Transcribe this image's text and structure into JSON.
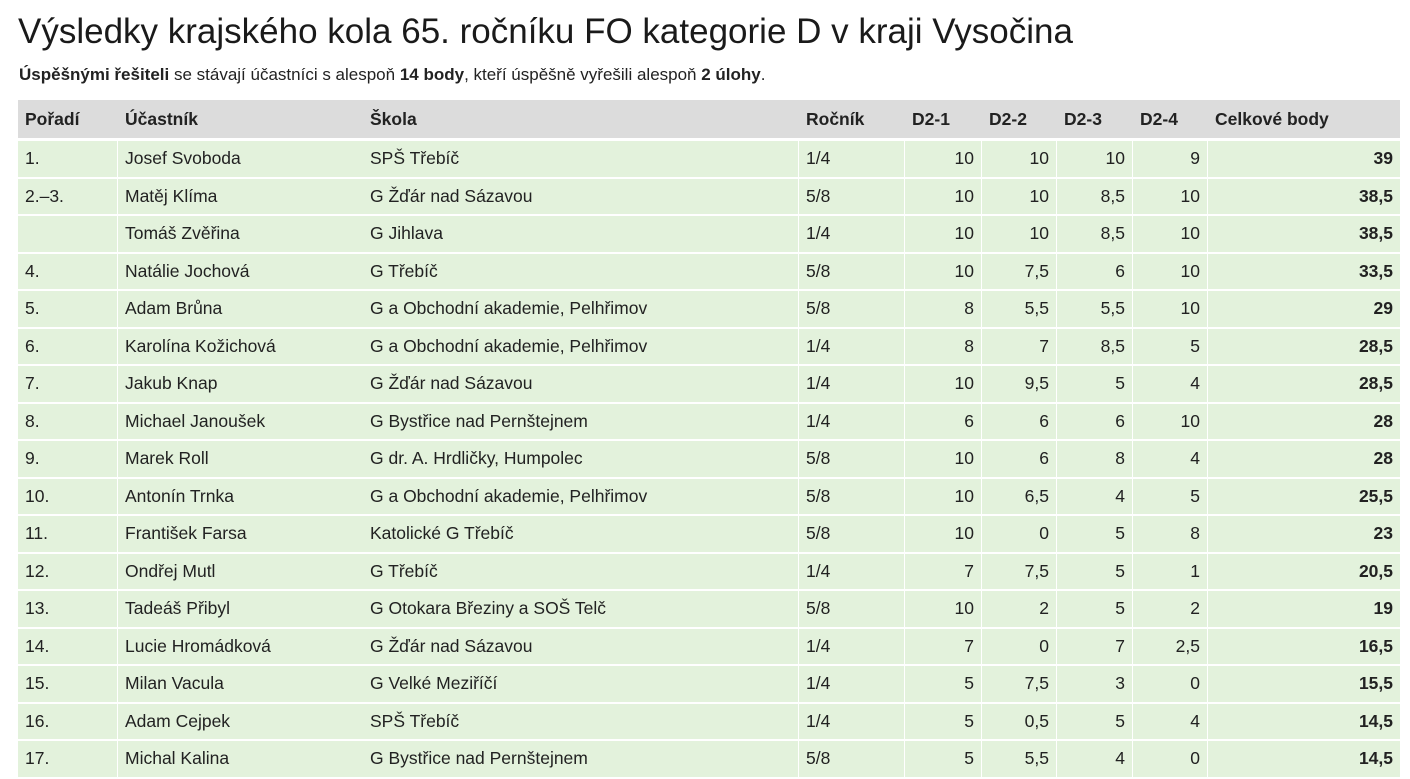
{
  "title": "Výsledky krajského kola 65. ročníku FO kategorie D v kraji Vysočina",
  "note": {
    "p1": "Úspěšnými řešiteli",
    "p2": " se stávají účastníci s alespoň ",
    "p3": "14 body",
    "p4": ", kteří úspěšně vyřešili alespoň ",
    "p5": "2 úlohy",
    "p6": "."
  },
  "columns": [
    "Pořadí",
    "Účastník",
    "Škola",
    "Ročník",
    "D2-1",
    "D2-2",
    "D2-3",
    "D2-4",
    "Celkové body"
  ],
  "rows": [
    {
      "rank": "1.",
      "name": "Josef Svoboda",
      "school": "SPŠ Třebíč",
      "grade": "1/4",
      "d1": "10",
      "d2": "10",
      "d3": "10",
      "d4": "9",
      "total": "39"
    },
    {
      "rank": "2.–3.",
      "name": "Matěj Klíma",
      "school": "G Žďár nad Sázavou",
      "grade": "5/8",
      "d1": "10",
      "d2": "10",
      "d3": "8,5",
      "d4": "10",
      "total": "38,5"
    },
    {
      "rank": "",
      "name": "Tomáš Zvěřina",
      "school": "G Jihlava",
      "grade": "1/4",
      "d1": "10",
      "d2": "10",
      "d3": "8,5",
      "d4": "10",
      "total": "38,5"
    },
    {
      "rank": "4.",
      "name": "Natálie Jochová",
      "school": "G Třebíč",
      "grade": "5/8",
      "d1": "10",
      "d2": "7,5",
      "d3": "6",
      "d4": "10",
      "total": "33,5"
    },
    {
      "rank": "5.",
      "name": "Adam Brůna",
      "school": "G a Obchodní akademie, Pelhřimov",
      "grade": "5/8",
      "d1": "8",
      "d2": "5,5",
      "d3": "5,5",
      "d4": "10",
      "total": "29"
    },
    {
      "rank": "6.",
      "name": "Karolína Kožichová",
      "school": "G a Obchodní akademie, Pelhřimov",
      "grade": "1/4",
      "d1": "8",
      "d2": "7",
      "d3": "8,5",
      "d4": "5",
      "total": "28,5"
    },
    {
      "rank": "7.",
      "name": "Jakub Knap",
      "school": "G Žďár nad Sázavou",
      "grade": "1/4",
      "d1": "10",
      "d2": "9,5",
      "d3": "5",
      "d4": "4",
      "total": "28,5"
    },
    {
      "rank": "8.",
      "name": "Michael Janoušek",
      "school": "G Bystřice nad Pernštejnem",
      "grade": "1/4",
      "d1": "6",
      "d2": "6",
      "d3": "6",
      "d4": "10",
      "total": "28"
    },
    {
      "rank": "9.",
      "name": "Marek Roll",
      "school": "G dr. A. Hrdličky, Humpolec",
      "grade": "5/8",
      "d1": "10",
      "d2": "6",
      "d3": "8",
      "d4": "4",
      "total": "28"
    },
    {
      "rank": "10.",
      "name": "Antonín Trnka",
      "school": "G a Obchodní akademie, Pelhřimov",
      "grade": "5/8",
      "d1": "10",
      "d2": "6,5",
      "d3": "4",
      "d4": "5",
      "total": "25,5"
    },
    {
      "rank": "11.",
      "name": "František Farsa",
      "school": "Katolické G Třebíč",
      "grade": "5/8",
      "d1": "10",
      "d2": "0",
      "d3": "5",
      "d4": "8",
      "total": "23"
    },
    {
      "rank": "12.",
      "name": "Ondřej Mutl",
      "school": "G Třebíč",
      "grade": "1/4",
      "d1": "7",
      "d2": "7,5",
      "d3": "5",
      "d4": "1",
      "total": "20,5"
    },
    {
      "rank": "13.",
      "name": "Tadeáš Přibyl",
      "school": "G Otokara Březiny a SOŠ Telč",
      "grade": "5/8",
      "d1": "10",
      "d2": "2",
      "d3": "5",
      "d4": "2",
      "total": "19"
    },
    {
      "rank": "14.",
      "name": "Lucie Hromádková",
      "school": "G Žďár nad Sázavou",
      "grade": "1/4",
      "d1": "7",
      "d2": "0",
      "d3": "7",
      "d4": "2,5",
      "total": "16,5"
    },
    {
      "rank": "15.",
      "name": "Milan Vacula",
      "school": "G Velké Meziříčí",
      "grade": "1/4",
      "d1": "5",
      "d2": "7,5",
      "d3": "3",
      "d4": "0",
      "total": "15,5"
    },
    {
      "rank": "16.",
      "name": "Adam Cejpek",
      "school": "SPŠ Třebíč",
      "grade": "1/4",
      "d1": "5",
      "d2": "0,5",
      "d3": "5",
      "d4": "4",
      "total": "14,5"
    },
    {
      "rank": "17.",
      "name": "Michal Kalina",
      "school": "G Bystřice nad Pernštejnem",
      "grade": "5/8",
      "d1": "5",
      "d2": "5,5",
      "d3": "4",
      "d4": "0",
      "total": "14,5"
    }
  ],
  "colors": {
    "header_bg": "#dcdcdc",
    "row_bg": "#e3f2dc",
    "text": "#222222"
  }
}
